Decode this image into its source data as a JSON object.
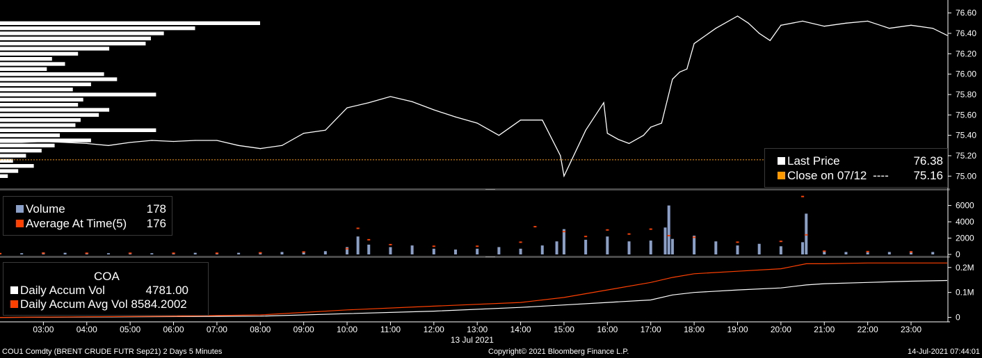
{
  "chart_data": [
    {
      "type": "line",
      "panel": "price",
      "series": [
        {
          "name": "Last Price",
          "color": "#ffffff",
          "x": [
            "02:00",
            "02:30",
            "03:00",
            "03:30",
            "04:00",
            "04:30",
            "05:00",
            "05:30",
            "06:00",
            "06:30",
            "07:00",
            "07:30",
            "08:00",
            "08:30",
            "09:00",
            "09:30",
            "10:00",
            "10:30",
            "11:00",
            "11:30",
            "12:00",
            "12:30",
            "13:00",
            "13:30",
            "14:00",
            "14:30",
            "14:55",
            "15:00",
            "15:30",
            "15:55",
            "16:00",
            "16:15",
            "16:30",
            "16:50",
            "17:00",
            "17:15",
            "17:30",
            "17:40",
            "17:50",
            "18:00",
            "18:30",
            "19:00",
            "19:15",
            "19:30",
            "19:45",
            "20:00",
            "20:30",
            "21:00",
            "21:30",
            "22:00",
            "22:30",
            "23:00",
            "23:30",
            "23:50"
          ],
          "y": [
            75.33,
            75.33,
            75.34,
            75.33,
            75.32,
            75.3,
            75.33,
            75.35,
            75.34,
            75.35,
            75.35,
            75.3,
            75.27,
            75.3,
            75.42,
            75.45,
            75.67,
            75.72,
            75.78,
            75.73,
            75.65,
            75.58,
            75.52,
            75.4,
            75.55,
            75.55,
            75.2,
            75.0,
            75.45,
            75.72,
            75.42,
            75.36,
            75.32,
            75.4,
            75.48,
            75.52,
            75.95,
            76.02,
            76.05,
            76.3,
            76.45,
            76.57,
            76.5,
            76.4,
            76.33,
            76.48,
            76.52,
            76.47,
            76.5,
            76.52,
            76.45,
            76.48,
            76.45,
            76.38
          ]
        },
        {
          "name": "Close on 07/12",
          "color": "#ff9900",
          "y_const": 75.16
        }
      ],
      "ylim": [
        74.9,
        76.7
      ],
      "y_ticks": [
        "76.60",
        "76.40",
        "76.20",
        "76.00",
        "75.80",
        "75.60",
        "75.40",
        "75.20",
        "75.00"
      ],
      "y_tick_values": [
        76.6,
        76.4,
        76.2,
        76.0,
        75.8,
        75.6,
        75.4,
        75.2,
        75.0
      ],
      "volume_profile": {
        "price": [
          76.5,
          76.45,
          76.4,
          76.35,
          76.3,
          76.25,
          76.2,
          76.15,
          76.1,
          76.05,
          76.0,
          75.95,
          75.9,
          75.85,
          75.8,
          75.75,
          75.7,
          75.65,
          75.6,
          75.55,
          75.5,
          75.45,
          75.4,
          75.35,
          75.3,
          75.25,
          75.2,
          75.15,
          75.1,
          75.05,
          75.0
        ],
        "volume": [
          1000,
          750,
          630,
          580,
          560,
          420,
          300,
          200,
          250,
          180,
          400,
          450,
          350,
          280,
          600,
          320,
          300,
          420,
          380,
          310,
          290,
          600,
          230,
          350,
          210,
          160,
          100,
          50,
          130,
          70,
          30
        ]
      }
    },
    {
      "type": "bar",
      "panel": "volume",
      "series": [
        {
          "name": "Volume",
          "color": "#8aa0c8",
          "x": [
            "02:00",
            "02:30",
            "03:00",
            "03:30",
            "04:00",
            "04:30",
            "05:00",
            "05:30",
            "06:00",
            "06:30",
            "07:00",
            "07:30",
            "08:00",
            "08:30",
            "09:00",
            "09:30",
            "10:00",
            "10:15",
            "10:30",
            "11:00",
            "11:30",
            "12:00",
            "12:30",
            "13:00",
            "13:30",
            "14:00",
            "14:30",
            "14:50",
            "15:00",
            "15:30",
            "16:00",
            "16:30",
            "17:00",
            "17:20",
            "17:25",
            "17:30",
            "18:00",
            "18:30",
            "19:00",
            "19:30",
            "20:00",
            "20:30",
            "20:35",
            "21:00",
            "21:30",
            "22:00",
            "22:30",
            "23:00",
            "23:30"
          ],
          "values": [
            150,
            150,
            250,
            200,
            150,
            150,
            150,
            150,
            200,
            200,
            150,
            200,
            250,
            300,
            350,
            400,
            900,
            2200,
            1200,
            900,
            1100,
            700,
            600,
            700,
            900,
            700,
            1100,
            1600,
            3100,
            1800,
            2200,
            1600,
            1700,
            3300,
            6000,
            1900,
            2300,
            1600,
            1100,
            1300,
            1000,
            1500,
            5000,
            400,
            300,
            250,
            300,
            400,
            300
          ]
        },
        {
          "name": "Average At Time(5)",
          "color": "#ff4000",
          "x": [
            "02:00",
            "03:00",
            "04:00",
            "05:00",
            "06:00",
            "07:00",
            "08:00",
            "09:00",
            "10:00",
            "10:15",
            "10:30",
            "11:00",
            "12:00",
            "13:00",
            "14:00",
            "14:20",
            "15:00",
            "15:30",
            "16:00",
            "16:30",
            "17:00",
            "17:25",
            "18:00",
            "19:00",
            "20:00",
            "20:30",
            "20:35",
            "21:00",
            "22:00",
            "23:00"
          ],
          "values": [
            100,
            150,
            150,
            150,
            150,
            150,
            200,
            300,
            700,
            3200,
            1800,
            1200,
            1000,
            1000,
            1500,
            3400,
            2800,
            2200,
            3000,
            2500,
            3100,
            2300,
            2100,
            1500,
            1600,
            7100,
            2400,
            400,
            350,
            300
          ]
        }
      ],
      "ylim": [
        0,
        7500
      ],
      "y_ticks": [
        "6000",
        "4000",
        "2000",
        "0"
      ],
      "y_tick_values": [
        6000,
        4000,
        2000,
        0
      ]
    },
    {
      "type": "line",
      "panel": "accum",
      "series": [
        {
          "name": "Daily Accum Vol",
          "color": "#ffffff",
          "x": [
            "02:00",
            "08:00",
            "10:00",
            "12:00",
            "14:00",
            "15:00",
            "16:00",
            "17:00",
            "17:30",
            "18:00",
            "19:00",
            "20:00",
            "20:35",
            "21:00",
            "22:00",
            "23:00",
            "23:50"
          ],
          "values": [
            0,
            5000,
            15000,
            25000,
            40000,
            50000,
            60000,
            70000,
            90000,
            100000,
            110000,
            118000,
            130000,
            135000,
            140000,
            145000,
            148000
          ]
        },
        {
          "name": "Daily Accum Avg Vol",
          "color": "#ff4000",
          "x": [
            "02:00",
            "06:00",
            "08:00",
            "10:00",
            "12:00",
            "14:00",
            "15:00",
            "16:00",
            "17:00",
            "17:30",
            "18:00",
            "19:00",
            "20:00",
            "20:35",
            "21:00",
            "22:00",
            "23:00",
            "23:50"
          ],
          "values": [
            0,
            5000,
            10000,
            30000,
            45000,
            60000,
            80000,
            110000,
            140000,
            160000,
            175000,
            185000,
            195000,
            215000,
            215000,
            218000,
            218000,
            218000
          ]
        }
      ],
      "ylim": [
        -15000,
        230000
      ],
      "y_ticks": [
        "0.2M",
        "0.1M",
        "0"
      ],
      "y_tick_values": [
        200000,
        100000,
        0
      ]
    }
  ],
  "x_axis": {
    "ticks": [
      "03:00",
      "04:00",
      "05:00",
      "06:00",
      "07:00",
      "08:00",
      "09:00",
      "10:00",
      "11:00",
      "12:00",
      "13:00",
      "14:00",
      "15:00",
      "16:00",
      "17:00",
      "18:00",
      "19:00",
      "20:00",
      "21:00",
      "22:00",
      "23:00"
    ],
    "date_label": "13 Jul 2021",
    "xlim": [
      "02:00",
      "23:50"
    ]
  },
  "legend_price": {
    "last_price_label": "Last Price",
    "last_price_value": "76.38",
    "close_label": "Close on 07/12",
    "close_dashes": "----",
    "close_value": "75.16"
  },
  "legend_volume": {
    "volume_label": "Volume",
    "volume_value": "178",
    "avg_label": "Average At Time(5)",
    "avg_value": "176"
  },
  "legend_accum": {
    "title": "COA",
    "accum_label": "Daily Accum Vol",
    "accum_value": "4781.00",
    "accum_avg_label": "Daily Accum Avg Vol",
    "accum_avg_value": "8584.2002"
  },
  "footer": {
    "ticker": "COU1 Comdty (BRENT CRUDE FUTR  Sep21) 2 Days 5 Minutes",
    "copyright": "Copyright© 2021 Bloomberg Finance L.P.",
    "timestamp": "14-Jul-2021 07:44:01"
  },
  "colors": {
    "background": "#000000",
    "separator": "#4a4a4a",
    "axis": "#ffffff"
  }
}
